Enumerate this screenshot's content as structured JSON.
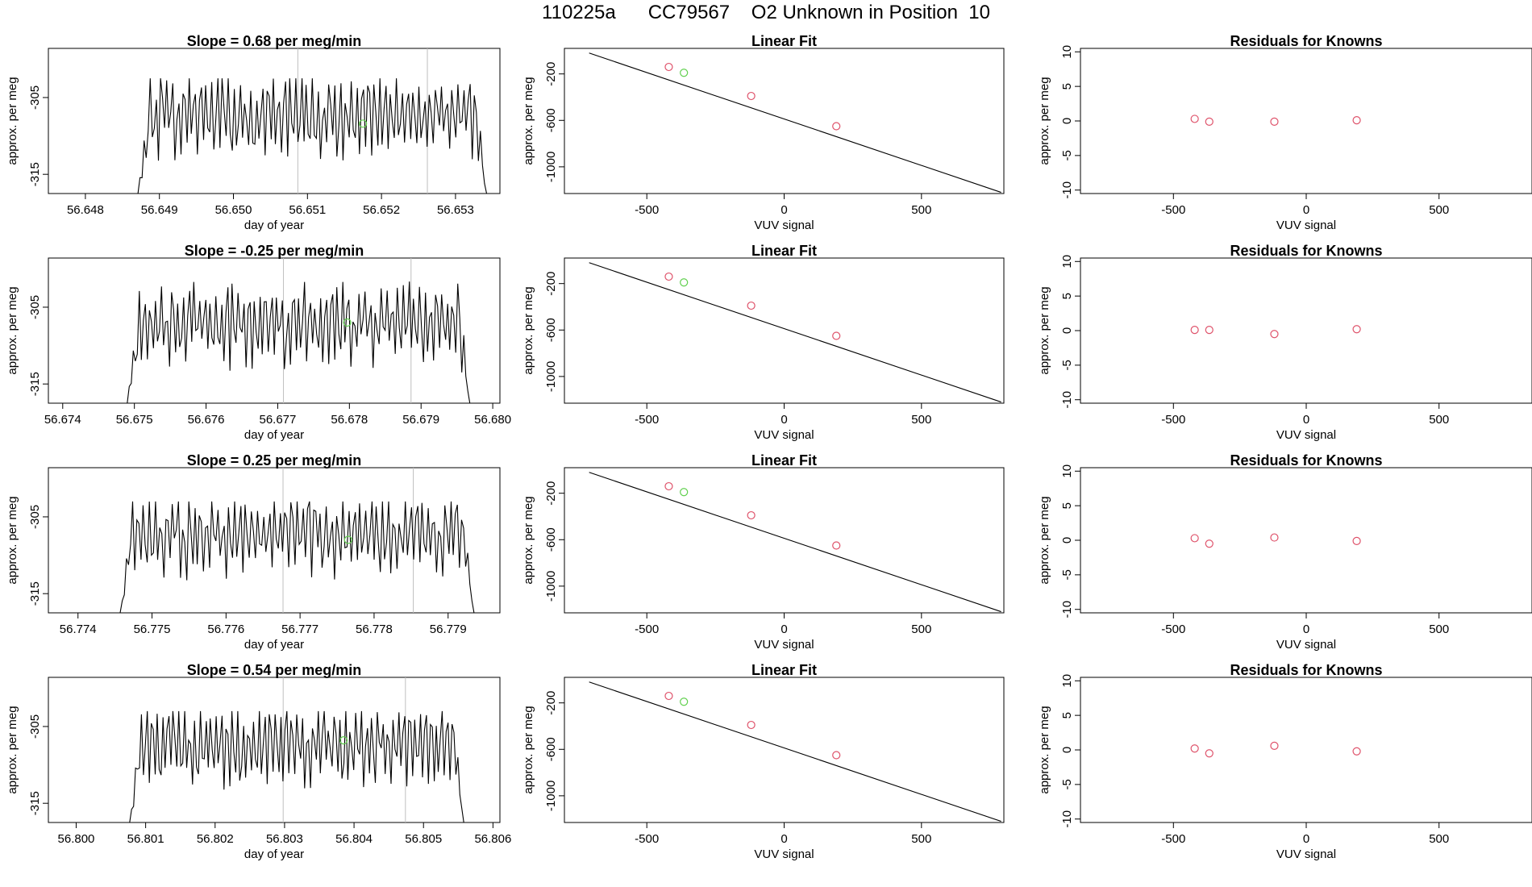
{
  "page_title": "110225a      CC79567    O2 Unknown in Position  10",
  "colors": {
    "trace": "#000000",
    "vline": "#bebebe",
    "known_point": "#df536b",
    "unknown_point": "#61d04f",
    "fit_line": "#000000"
  },
  "chart_data": [
    {
      "type": "line",
      "title": "Slope =  0.68  per meg/min",
      "xlabel": "day of year",
      "ylabel": "approx. per meg",
      "xlim": [
        56.6475,
        56.6536
      ],
      "ylim": [
        -317.5,
        -298.6
      ],
      "xticks": [
        "56.648",
        "56.649",
        "56.650",
        "56.651",
        "56.652",
        "56.653"
      ],
      "yticks": [
        "-305",
        "-315"
      ],
      "trace_x_range": [
        56.64871,
        56.65342
      ],
      "trace_y_range": [
        -317.5,
        -302.5
      ],
      "trace_seed": 1,
      "vlines": [
        56.65087,
        56.65262
      ],
      "unknown_point": [
        56.65175,
        -308.4
      ]
    },
    {
      "type": "scatter",
      "title": "Linear Fit",
      "xlabel": "VUV signal",
      "ylabel": "approx. per meg",
      "xlim": [
        -800,
        800
      ],
      "ylim": [
        -1230,
        20
      ],
      "xticks": [
        "-500",
        "0",
        "500"
      ],
      "yticks": [
        "-200",
        "-600",
        "-1000"
      ],
      "fit_line": {
        "x": [
          -710,
          790
        ],
        "y": [
          -20,
          -1220
        ]
      },
      "known_points": [
        {
          "x": -420,
          "y": -140
        },
        {
          "x": -120,
          "y": -390
        },
        {
          "x": 190,
          "y": -650
        }
      ],
      "unknown_point": {
        "x": -365,
        "y": -190
      }
    },
    {
      "type": "scatter",
      "title": "Residuals for Knowns",
      "xlabel": "VUV signal",
      "ylabel": "approx. per meg",
      "xlim": [
        -850,
        850
      ],
      "ylim": [
        -10.5,
        10.5
      ],
      "xticks": [
        "-500",
        "0",
        "500"
      ],
      "yticks": [
        "10",
        "5",
        "0",
        "-5",
        "-10"
      ],
      "points": [
        {
          "x": -420,
          "y": 0.3
        },
        {
          "x": -365,
          "y": -0.1
        },
        {
          "x": -120,
          "y": -0.1
        },
        {
          "x": 190,
          "y": 0.1
        }
      ]
    },
    {
      "type": "line",
      "title": "Slope =  -0.25  per meg/min",
      "xlabel": "day of year",
      "ylabel": "approx. per meg",
      "xlim": [
        56.6738,
        56.6801
      ],
      "ylim": [
        -317.5,
        -298.6
      ],
      "xticks": [
        "56.674",
        "56.675",
        "56.676",
        "56.677",
        "56.678",
        "56.679",
        "56.680"
      ],
      "yticks": [
        "-305",
        "-315"
      ],
      "trace_x_range": [
        56.6749,
        56.67968
      ],
      "trace_y_range": [
        -317.5,
        -301.5
      ],
      "trace_seed": 2,
      "vlines": [
        56.67708,
        56.67886
      ],
      "unknown_point": [
        56.67797,
        -307.0
      ]
    },
    {
      "type": "scatter",
      "title": "Linear Fit",
      "xlabel": "VUV signal",
      "ylabel": "approx. per meg",
      "xlim": [
        -800,
        800
      ],
      "ylim": [
        -1230,
        20
      ],
      "xticks": [
        "-500",
        "0",
        "500"
      ],
      "yticks": [
        "-200",
        "-600",
        "-1000"
      ],
      "fit_line": {
        "x": [
          -710,
          790
        ],
        "y": [
          -20,
          -1220
        ]
      },
      "known_points": [
        {
          "x": -420,
          "y": -140
        },
        {
          "x": -120,
          "y": -390
        },
        {
          "x": 190,
          "y": -650
        }
      ],
      "unknown_point": {
        "x": -365,
        "y": -190
      }
    },
    {
      "type": "scatter",
      "title": "Residuals for Knowns",
      "xlabel": "VUV signal",
      "ylabel": "approx. per meg",
      "xlim": [
        -850,
        850
      ],
      "ylim": [
        -10.5,
        10.5
      ],
      "xticks": [
        "-500",
        "0",
        "500"
      ],
      "yticks": [
        "10",
        "5",
        "0",
        "-5",
        "-10"
      ],
      "points": [
        {
          "x": -420,
          "y": 0.1
        },
        {
          "x": -365,
          "y": 0.1
        },
        {
          "x": -120,
          "y": -0.5
        },
        {
          "x": 190,
          "y": 0.2
        }
      ]
    },
    {
      "type": "line",
      "title": "Slope =  0.25  per meg/min",
      "xlabel": "day of year",
      "ylabel": "approx. per meg",
      "xlim": [
        56.7736,
        56.7797
      ],
      "ylim": [
        -317.5,
        -298.6
      ],
      "xticks": [
        "56.774",
        "56.775",
        "56.776",
        "56.777",
        "56.778",
        "56.779"
      ],
      "yticks": [
        "-305",
        "-315"
      ],
      "trace_x_range": [
        56.77457,
        56.77935
      ],
      "trace_y_range": [
        -317.5,
        -303.0
      ],
      "trace_seed": 3,
      "vlines": [
        56.77677,
        56.77853
      ],
      "unknown_point": [
        56.77765,
        -308.0
      ]
    },
    {
      "type": "scatter",
      "title": "Linear Fit",
      "xlabel": "VUV signal",
      "ylabel": "approx. per meg",
      "xlim": [
        -800,
        800
      ],
      "ylim": [
        -1230,
        20
      ],
      "xticks": [
        "-500",
        "0",
        "500"
      ],
      "yticks": [
        "-200",
        "-600",
        "-1000"
      ],
      "fit_line": {
        "x": [
          -710,
          790
        ],
        "y": [
          -20,
          -1220
        ]
      },
      "known_points": [
        {
          "x": -420,
          "y": -140
        },
        {
          "x": -120,
          "y": -390
        },
        {
          "x": 190,
          "y": -650
        }
      ],
      "unknown_point": {
        "x": -365,
        "y": -190
      }
    },
    {
      "type": "scatter",
      "title": "Residuals for Knowns",
      "xlabel": "VUV signal",
      "ylabel": "approx. per meg",
      "xlim": [
        -850,
        850
      ],
      "ylim": [
        -10.5,
        10.5
      ],
      "xticks": [
        "-500",
        "0",
        "500"
      ],
      "yticks": [
        "10",
        "5",
        "0",
        "-5",
        "-10"
      ],
      "points": [
        {
          "x": -420,
          "y": 0.3
        },
        {
          "x": -365,
          "y": -0.5
        },
        {
          "x": -120,
          "y": 0.4
        },
        {
          "x": 190,
          "y": -0.1
        }
      ]
    },
    {
      "type": "line",
      "title": "Slope =  0.54  per meg/min",
      "xlabel": "day of year",
      "ylabel": "approx. per meg",
      "xlim": [
        56.7996,
        56.8061
      ],
      "ylim": [
        -317.5,
        -298.6
      ],
      "xticks": [
        "56.800",
        "56.801",
        "56.802",
        "56.803",
        "56.804",
        "56.805",
        "56.806"
      ],
      "yticks": [
        "-305",
        "-315"
      ],
      "trace_x_range": [
        56.80077,
        56.80558
      ],
      "trace_y_range": [
        -317.5,
        -303.0
      ],
      "trace_seed": 4,
      "vlines": [
        56.80298,
        56.80474
      ],
      "unknown_point": [
        56.80385,
        -306.8
      ]
    },
    {
      "type": "scatter",
      "title": "Linear Fit",
      "xlabel": "VUV signal",
      "ylabel": "approx. per meg",
      "xlim": [
        -800,
        800
      ],
      "ylim": [
        -1230,
        20
      ],
      "xticks": [
        "-500",
        "0",
        "500"
      ],
      "yticks": [
        "-200",
        "-600",
        "-1000"
      ],
      "fit_line": {
        "x": [
          -710,
          790
        ],
        "y": [
          -20,
          -1220
        ]
      },
      "known_points": [
        {
          "x": -420,
          "y": -140
        },
        {
          "x": -120,
          "y": -390
        },
        {
          "x": 190,
          "y": -650
        }
      ],
      "unknown_point": {
        "x": -365,
        "y": -190
      }
    },
    {
      "type": "scatter",
      "title": "Residuals for Knowns",
      "xlabel": "VUV signal",
      "ylabel": "approx. per meg",
      "xlim": [
        -850,
        850
      ],
      "ylim": [
        -10.5,
        10.5
      ],
      "xticks": [
        "-500",
        "0",
        "500"
      ],
      "yticks": [
        "10",
        "5",
        "0",
        "-5",
        "-10"
      ],
      "points": [
        {
          "x": -420,
          "y": 0.2
        },
        {
          "x": -365,
          "y": -0.5
        },
        {
          "x": -120,
          "y": 0.6
        },
        {
          "x": 190,
          "y": -0.2
        }
      ]
    }
  ]
}
